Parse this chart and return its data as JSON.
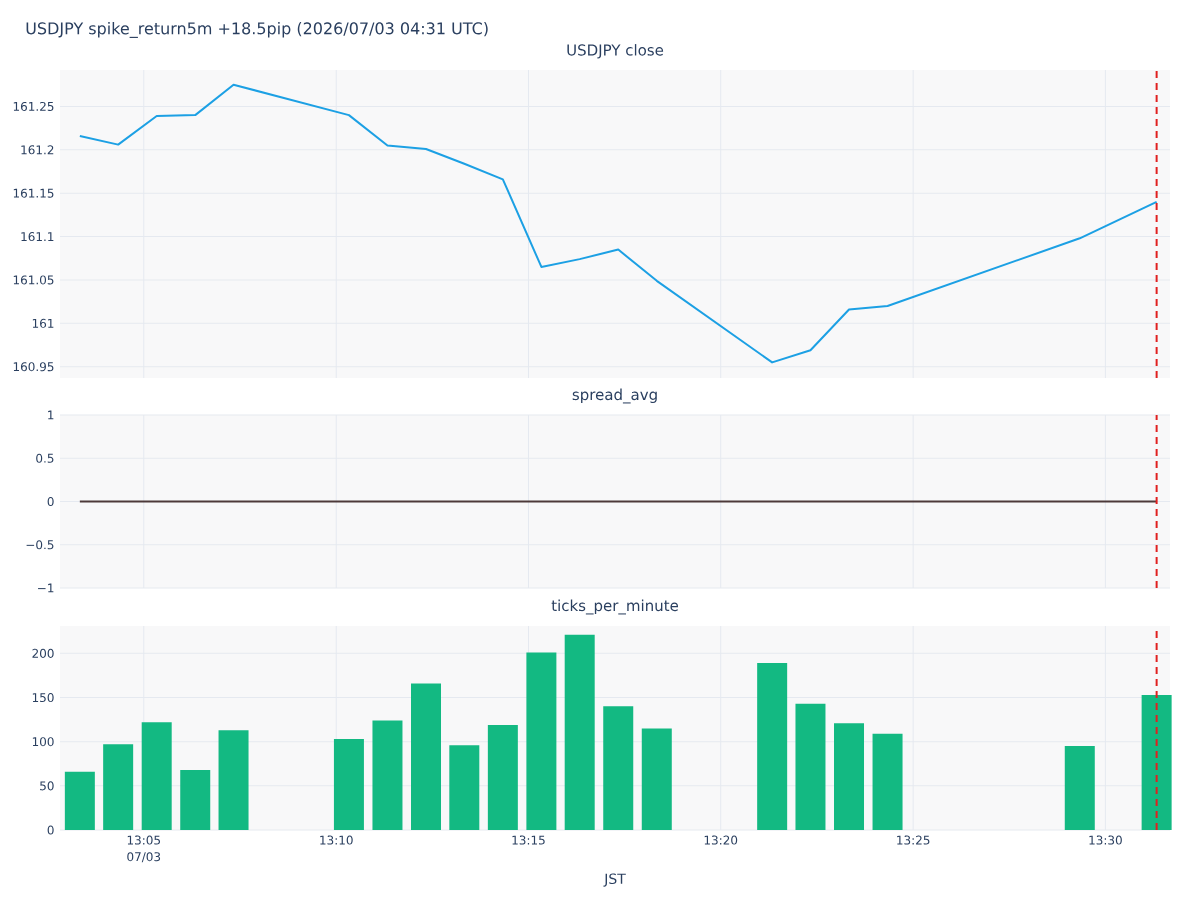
{
  "chart_data": [
    {
      "type": "line",
      "title": "USDJPY spike_return5m +18.5pip (2026/07/03 04:31 UTC)",
      "subtitle": "USDJPY close",
      "x": [
        13.0556,
        13.0722,
        13.0889,
        13.1056,
        13.1222,
        13.1722,
        13.1889,
        13.2056,
        13.2222,
        13.2389,
        13.2556,
        13.2722,
        13.2889,
        13.3056,
        13.3556,
        13.3722,
        13.3889,
        13.4056,
        13.4889,
        13.5222
      ],
      "series": [
        {
          "color": "#1ca0e4",
          "values": [
            161.216,
            161.206,
            161.239,
            161.24,
            161.275,
            161.24,
            161.205,
            161.201,
            161.184,
            161.166,
            161.065,
            161.074,
            161.085,
            161.049,
            160.955,
            160.969,
            161.016,
            161.02,
            161.098,
            161.14
          ]
        }
      ],
      "xlim": [
        13.047,
        13.528
      ],
      "ylim": [
        160.937,
        161.292
      ],
      "xticks": [
        {
          "value": 13.0833,
          "label": null
        },
        {
          "value": 13.1667,
          "label": null
        },
        {
          "value": 13.25,
          "label": null
        },
        {
          "value": 13.3333,
          "label": null
        },
        {
          "value": 13.4167,
          "label": null
        },
        {
          "value": 13.5,
          "label": null
        }
      ],
      "yticks": [
        160.95,
        {
          "value": 161,
          "label": "161"
        },
        161.05,
        161.1,
        161.15,
        161.2,
        161.25
      ],
      "tick_labels": "y",
      "grid": true,
      "ref_lines": [
        {
          "axis": "x",
          "value": 13.5222,
          "color": "#e02020",
          "line_style": "dashed"
        }
      ]
    },
    {
      "type": "line",
      "title": "spread_avg",
      "x": [
        13.0556,
        13.0722,
        13.0889,
        13.1056,
        13.1222,
        13.1722,
        13.1889,
        13.2056,
        13.2222,
        13.2389,
        13.2556,
        13.2722,
        13.2889,
        13.3056,
        13.3556,
        13.3722,
        13.3889,
        13.4056,
        13.4889,
        13.5222
      ],
      "series": [
        {
          "color": "#4d3a3a",
          "values": [
            0,
            0,
            0,
            0,
            0,
            0,
            0,
            0,
            0,
            0,
            0,
            0,
            0,
            0,
            0,
            0,
            0,
            0,
            0,
            0
          ]
        }
      ],
      "xlim": [
        13.047,
        13.528
      ],
      "ylim": [
        -1,
        1
      ],
      "xticks": [
        {
          "value": 13.0833,
          "label": null
        },
        {
          "value": 13.1667,
          "label": null
        },
        {
          "value": 13.25,
          "label": null
        },
        {
          "value": 13.3333,
          "label": null
        },
        {
          "value": 13.4167,
          "label": null
        },
        {
          "value": 13.5,
          "label": null
        }
      ],
      "yticks": [
        {
          "value": -1,
          "label": "−1"
        },
        {
          "value": -0.5,
          "label": "−0.5"
        },
        0,
        0.5,
        1
      ],
      "tick_labels": "y",
      "grid": true,
      "ref_lines": [
        {
          "axis": "x",
          "value": 13.5222,
          "color": "#e02020",
          "line_style": "dashed"
        }
      ]
    },
    {
      "type": "bar",
      "title": "ticks_per_minute",
      "xlabel": "JST",
      "annotations": [
        "07/03"
      ],
      "x": [
        13.0556,
        13.0722,
        13.0889,
        13.1056,
        13.1222,
        13.1722,
        13.1889,
        13.2056,
        13.2222,
        13.2389,
        13.2556,
        13.2722,
        13.2889,
        13.3056,
        13.3556,
        13.3722,
        13.3889,
        13.4056,
        13.4889,
        13.5222
      ],
      "series": [
        {
          "color": "#13b982",
          "values": [
            66,
            97,
            122,
            68,
            113,
            103,
            124,
            166,
            96,
            119,
            201,
            221,
            140,
            115,
            189,
            143,
            121,
            109,
            95,
            153
          ]
        }
      ],
      "xlim": [
        13.047,
        13.528
      ],
      "ylim": [
        0,
        231
      ],
      "xticks": [
        {
          "value": 13.0833,
          "label": "13:05"
        },
        {
          "value": 13.1667,
          "label": "13:10"
        },
        {
          "value": 13.25,
          "label": "13:15"
        },
        {
          "value": 13.3333,
          "label": "13:20"
        },
        {
          "value": 13.4167,
          "label": "13:25"
        },
        {
          "value": 13.5,
          "label": "13:30"
        }
      ],
      "yticks": [
        0,
        50,
        100,
        150,
        200
      ],
      "grid": true,
      "ref_lines": [
        {
          "axis": "x",
          "value": 13.5222,
          "color": "#e02020",
          "line_style": "dashed"
        }
      ]
    }
  ]
}
